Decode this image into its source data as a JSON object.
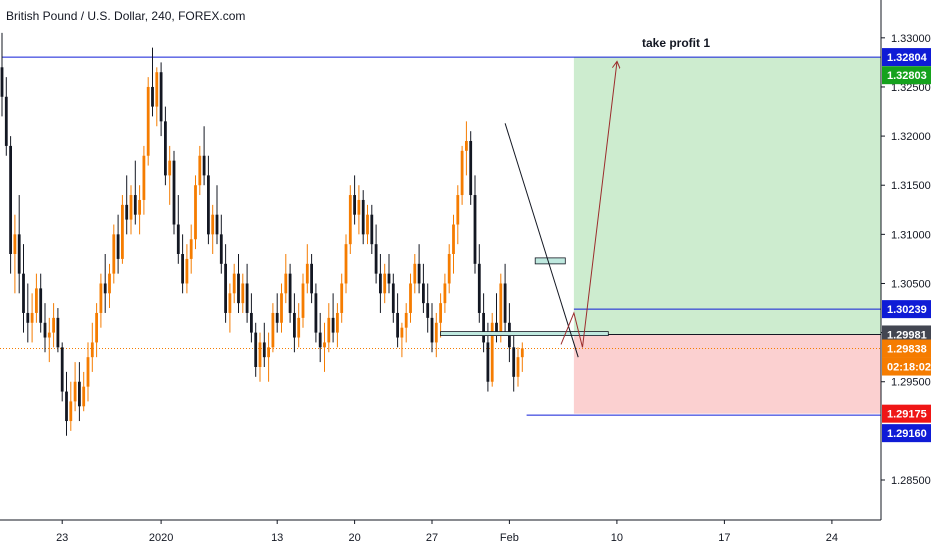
{
  "header": {
    "title": "British Pound / U.S. Dollar, 240, FOREX.com"
  },
  "chart_data": {
    "type": "candlestick",
    "symbol": "GBPUSD",
    "ylim": [
      1.28,
      1.335
    ],
    "y_ticks": [
      {
        "value": 1.33,
        "label": "1.33000"
      },
      {
        "value": 1.325,
        "label": "1.32500"
      },
      {
        "value": 1.32,
        "label": "1.32000"
      },
      {
        "value": 1.315,
        "label": "1.31500"
      },
      {
        "value": 1.31,
        "label": "1.31000"
      },
      {
        "value": 1.305,
        "label": "1.30500"
      },
      {
        "value": 1.3,
        "label": "1.30000"
      },
      {
        "value": 1.295,
        "label": "1.29500"
      },
      {
        "value": 1.285,
        "label": "1.28500"
      }
    ],
    "x_ticks": [
      {
        "index": 14,
        "label": "23"
      },
      {
        "index": 37,
        "label": "2020"
      },
      {
        "index": 64,
        "label": "13"
      },
      {
        "index": 82,
        "label": "20"
      },
      {
        "index": 100,
        "label": "27"
      },
      {
        "index": 118,
        "label": "Feb"
      },
      {
        "index": 143,
        "label": "10"
      },
      {
        "index": 168,
        "label": "17"
      },
      {
        "index": 193,
        "label": "24"
      }
    ],
    "price_tags": [
      {
        "value": 1.32804,
        "label": "1.32804",
        "color": "#0f1bd6"
      },
      {
        "value": 1.32803,
        "label": "1.32803",
        "color": "#15a21d",
        "stack": 1
      },
      {
        "value": 1.30239,
        "label": "1.30239",
        "color": "#0f1bd6"
      },
      {
        "value": 1.29981,
        "label": "1.29981",
        "color": "#434651"
      },
      {
        "value": 1.29838,
        "label": "1.29838",
        "color": "#f57c00"
      },
      {
        "value": 1.29838,
        "label": "02:18:02",
        "color": "#f57c00",
        "stack": 1
      },
      {
        "value": 1.29175,
        "label": "1.29175",
        "color": "#ef1616"
      },
      {
        "value": 1.2916,
        "label": "1.29160",
        "color": "#0f1bd6",
        "stack": 1
      }
    ],
    "horizontal_lines": [
      {
        "value": 1.32804,
        "color": "#0f1bd6",
        "from": 0,
        "to": 203
      },
      {
        "value": 1.30239,
        "color": "#0f1bd6",
        "from": 133,
        "to": 203
      },
      {
        "value": 1.29981,
        "color": "#131722",
        "from": 133,
        "to": 203
      },
      {
        "value": 1.2916,
        "color": "#0f1bd6",
        "from": 122,
        "to": 203
      }
    ],
    "current_price": 1.29838,
    "position": {
      "entry": 1.29981,
      "take_profit": 1.32804,
      "stop_loss": 1.29175,
      "from_index": 133,
      "to_index": 203,
      "tp_label": "take profit 1"
    },
    "candles": [
      [
        1.327,
        1.3305,
        1.322,
        1.324
      ],
      [
        1.324,
        1.326,
        1.318,
        1.319
      ],
      [
        1.319,
        1.32,
        1.306,
        1.308
      ],
      [
        1.308,
        1.312,
        1.304,
        1.31
      ],
      [
        1.31,
        1.314,
        1.304,
        1.306
      ],
      [
        1.306,
        1.309,
        1.3,
        1.302
      ],
      [
        1.302,
        1.305,
        1.299,
        1.301
      ],
      [
        1.301,
        1.304,
        1.299,
        1.302
      ],
      [
        1.302,
        1.306,
        1.301,
        1.3045
      ],
      [
        1.3045,
        1.306,
        1.3,
        1.301
      ],
      [
        1.301,
        1.303,
        1.298,
        1.2995
      ],
      [
        1.2995,
        1.3015,
        1.297,
        1.3
      ],
      [
        1.3,
        1.303,
        1.2985,
        1.3015
      ],
      [
        1.3015,
        1.3025,
        1.298,
        1.2985
      ],
      [
        1.2985,
        1.299,
        1.293,
        1.294
      ],
      [
        1.294,
        1.296,
        1.2895,
        1.291
      ],
      [
        1.291,
        1.295,
        1.29,
        1.293
      ],
      [
        1.293,
        1.297,
        1.292,
        1.295
      ],
      [
        1.295,
        1.297,
        1.291,
        1.2925
      ],
      [
        1.2925,
        1.296,
        1.292,
        1.2945
      ],
      [
        1.2945,
        1.299,
        1.293,
        1.2975
      ],
      [
        1.2975,
        1.301,
        1.296,
        1.299
      ],
      [
        1.299,
        1.303,
        1.2975,
        1.302
      ],
      [
        1.302,
        1.306,
        1.3005,
        1.305
      ],
      [
        1.305,
        1.308,
        1.302,
        1.304
      ],
      [
        1.304,
        1.307,
        1.3025,
        1.306
      ],
      [
        1.306,
        1.311,
        1.305,
        1.31
      ],
      [
        1.31,
        1.312,
        1.306,
        1.3075
      ],
      [
        1.3075,
        1.314,
        1.307,
        1.313
      ],
      [
        1.313,
        1.316,
        1.31,
        1.3115
      ],
      [
        1.3115,
        1.315,
        1.31,
        1.314
      ],
      [
        1.314,
        1.3175,
        1.311,
        1.312
      ],
      [
        1.312,
        1.315,
        1.31,
        1.3135
      ],
      [
        1.3135,
        1.319,
        1.312,
        1.318
      ],
      [
        1.318,
        1.326,
        1.317,
        1.325
      ],
      [
        1.325,
        1.329,
        1.322,
        1.323
      ],
      [
        1.323,
        1.327,
        1.321,
        1.3265
      ],
      [
        1.3265,
        1.3275,
        1.32,
        1.3215
      ],
      [
        1.3215,
        1.323,
        1.315,
        1.316
      ],
      [
        1.316,
        1.319,
        1.313,
        1.3175
      ],
      [
        1.3175,
        1.3185,
        1.31,
        1.311
      ],
      [
        1.311,
        1.314,
        1.307,
        1.308
      ],
      [
        1.308,
        1.31,
        1.304,
        1.305
      ],
      [
        1.305,
        1.309,
        1.304,
        1.3075
      ],
      [
        1.3075,
        1.311,
        1.306,
        1.3095
      ],
      [
        1.3095,
        1.316,
        1.3085,
        1.315
      ],
      [
        1.315,
        1.319,
        1.314,
        1.318
      ],
      [
        1.318,
        1.321,
        1.315,
        1.316
      ],
      [
        1.316,
        1.318,
        1.309,
        1.31
      ],
      [
        1.31,
        1.313,
        1.308,
        1.312
      ],
      [
        1.312,
        1.315,
        1.309,
        1.31
      ],
      [
        1.31,
        1.312,
        1.306,
        1.307
      ],
      [
        1.307,
        1.309,
        1.301,
        1.302
      ],
      [
        1.302,
        1.305,
        1.3,
        1.304
      ],
      [
        1.304,
        1.307,
        1.303,
        1.306
      ],
      [
        1.306,
        1.308,
        1.302,
        1.303
      ],
      [
        1.303,
        1.306,
        1.302,
        1.305
      ],
      [
        1.305,
        1.307,
        1.301,
        1.302
      ],
      [
        1.302,
        1.304,
        1.299,
        1.3
      ],
      [
        1.3,
        1.301,
        1.2955,
        1.2965
      ],
      [
        1.2965,
        1.3,
        1.295,
        1.299
      ],
      [
        1.299,
        1.301,
        1.2965,
        1.2975
      ],
      [
        1.2975,
        1.3,
        1.295,
        1.2985
      ],
      [
        1.2985,
        1.303,
        1.298,
        1.302
      ],
      [
        1.302,
        1.304,
        1.3,
        1.301
      ],
      [
        1.301,
        1.305,
        1.3,
        1.304
      ],
      [
        1.304,
        1.308,
        1.303,
        1.306
      ],
      [
        1.306,
        1.307,
        1.301,
        1.302
      ],
      [
        1.302,
        1.304,
        1.298,
        1.2995
      ],
      [
        1.2995,
        1.303,
        1.2985,
        1.3015
      ],
      [
        1.3015,
        1.306,
        1.3005,
        1.305
      ],
      [
        1.305,
        1.309,
        1.304,
        1.307
      ],
      [
        1.307,
        1.308,
        1.303,
        1.304
      ],
      [
        1.304,
        1.305,
        1.299,
        1.3
      ],
      [
        1.3,
        1.302,
        1.297,
        1.2985
      ],
      [
        1.2985,
        1.301,
        1.296,
        1.299
      ],
      [
        1.299,
        1.303,
        1.298,
        1.3015
      ],
      [
        1.3015,
        1.304,
        1.299,
        1.3
      ],
      [
        1.3,
        1.303,
        1.2985,
        1.302
      ],
      [
        1.302,
        1.306,
        1.301,
        1.305
      ],
      [
        1.305,
        1.31,
        1.304,
        1.309
      ],
      [
        1.309,
        1.315,
        1.308,
        1.314
      ],
      [
        1.314,
        1.316,
        1.311,
        1.312
      ],
      [
        1.312,
        1.315,
        1.31,
        1.3135
      ],
      [
        1.3135,
        1.3145,
        1.309,
        1.31
      ],
      [
        1.31,
        1.313,
        1.309,
        1.312
      ],
      [
        1.312,
        1.313,
        1.308,
        1.309
      ],
      [
        1.309,
        1.311,
        1.305,
        1.306
      ],
      [
        1.306,
        1.308,
        1.302,
        1.304
      ],
      [
        1.304,
        1.307,
        1.303,
        1.306
      ],
      [
        1.306,
        1.308,
        1.304,
        1.305
      ],
      [
        1.305,
        1.306,
        1.301,
        1.302
      ],
      [
        1.302,
        1.304,
        1.2985,
        1.2995
      ],
      [
        1.2995,
        1.301,
        1.2975,
        1.3005
      ],
      [
        1.3005,
        1.303,
        1.299,
        1.302
      ],
      [
        1.302,
        1.306,
        1.301,
        1.305
      ],
      [
        1.305,
        1.308,
        1.304,
        1.307
      ],
      [
        1.307,
        1.309,
        1.304,
        1.305
      ],
      [
        1.305,
        1.307,
        1.302,
        1.303
      ],
      [
        1.303,
        1.305,
        1.3,
        1.3015
      ],
      [
        1.3015,
        1.303,
        1.298,
        1.299
      ],
      [
        1.299,
        1.302,
        1.2975,
        1.301
      ],
      [
        1.301,
        1.304,
        1.2995,
        1.303
      ],
      [
        1.303,
        1.306,
        1.302,
        1.305
      ],
      [
        1.305,
        1.309,
        1.304,
        1.308
      ],
      [
        1.308,
        1.312,
        1.306,
        1.311
      ],
      [
        1.311,
        1.315,
        1.309,
        1.314
      ],
      [
        1.314,
        1.319,
        1.313,
        1.3185
      ],
      [
        1.3185,
        1.3215,
        1.316,
        1.3195
      ],
      [
        1.3195,
        1.3205,
        1.313,
        1.314
      ],
      [
        1.314,
        1.316,
        1.306,
        1.307
      ],
      [
        1.307,
        1.309,
        1.301,
        1.302
      ],
      [
        1.302,
        1.304,
        1.298,
        1.299
      ],
      [
        1.299,
        1.301,
        1.294,
        1.295
      ],
      [
        1.295,
        1.302,
        1.2945,
        1.301
      ],
      [
        1.301,
        1.304,
        1.299,
        1.3
      ],
      [
        1.3,
        1.306,
        1.299,
        1.305
      ],
      [
        1.305,
        1.307,
        1.3,
        1.301
      ],
      [
        1.301,
        1.303,
        1.297,
        1.2985
      ],
      [
        1.2985,
        1.3,
        1.294,
        1.2955
      ],
      [
        1.2955,
        1.2985,
        1.2945,
        1.2975
      ],
      [
        1.2975,
        1.299,
        1.296,
        1.2984
      ]
    ]
  }
}
